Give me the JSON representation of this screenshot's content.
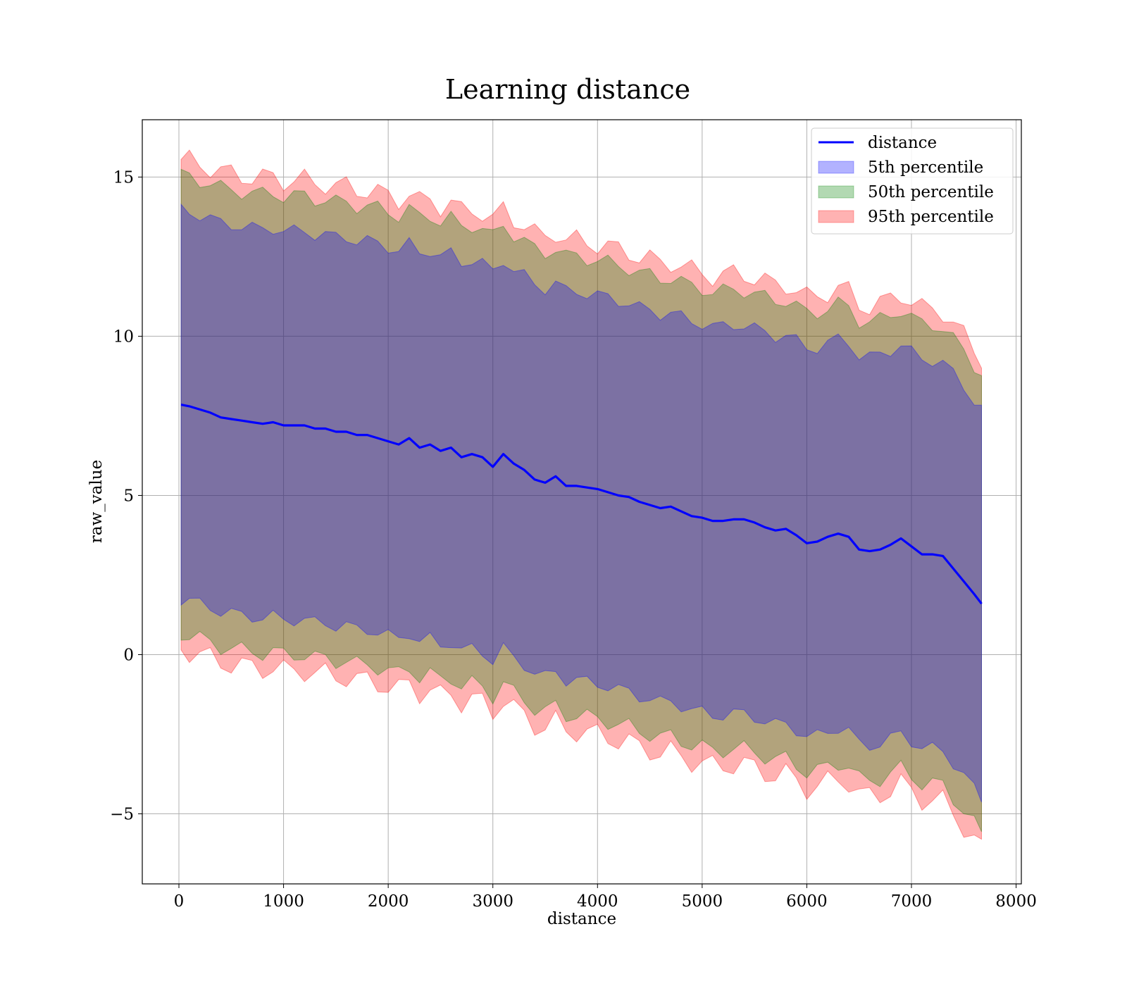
{
  "chart_data": {
    "type": "area",
    "title": "Learning distance",
    "xlabel": "distance",
    "ylabel": "raw_value",
    "xlim": [
      -350,
      8050
    ],
    "ylim": [
      -7.2,
      16.8
    ],
    "x_ticks": [
      0,
      1000,
      2000,
      3000,
      4000,
      5000,
      6000,
      7000,
      8000
    ],
    "y_ticks": [
      -5,
      0,
      5,
      10,
      15
    ],
    "x_tick_labels": [
      "0",
      "1000",
      "2000",
      "3000",
      "4000",
      "5000",
      "6000",
      "7000",
      "8000"
    ],
    "y_tick_labels": [
      "−5",
      "0",
      "5",
      "10",
      "15"
    ],
    "grid": true,
    "legend_position": "top-right",
    "x": [
      20,
      100,
      200,
      300,
      400,
      500,
      600,
      700,
      800,
      900,
      1000,
      1100,
      1200,
      1300,
      1400,
      1500,
      1600,
      1700,
      1800,
      1900,
      2000,
      2100,
      2200,
      2300,
      2400,
      2500,
      2600,
      2700,
      2800,
      2900,
      3000,
      3100,
      3200,
      3300,
      3400,
      3500,
      3600,
      3700,
      3800,
      3900,
      4000,
      4100,
      4200,
      4300,
      4400,
      4500,
      4600,
      4700,
      4800,
      4900,
      5000,
      5100,
      5200,
      5300,
      5400,
      5500,
      5600,
      5700,
      5800,
      5900,
      6000,
      6100,
      6200,
      6300,
      6400,
      6500,
      6600,
      6700,
      6800,
      6900,
      7000,
      7100,
      7200,
      7300,
      7400,
      7500,
      7600,
      7670
    ],
    "series": [
      {
        "name": "distance",
        "kind": "line",
        "color": "#0000ff",
        "values": [
          7.85,
          7.8,
          7.7,
          7.6,
          7.45,
          7.4,
          7.35,
          7.3,
          7.25,
          7.3,
          7.2,
          7.2,
          7.2,
          7.1,
          7.1,
          7.0,
          7.0,
          6.9,
          6.9,
          6.8,
          6.7,
          6.6,
          6.8,
          6.5,
          6.6,
          6.4,
          6.5,
          6.2,
          6.3,
          6.2,
          5.9,
          6.3,
          6.0,
          5.8,
          5.5,
          5.4,
          5.6,
          5.3,
          5.3,
          5.25,
          5.2,
          5.1,
          5.0,
          4.95,
          4.8,
          4.7,
          4.6,
          4.65,
          4.5,
          4.35,
          4.3,
          4.2,
          4.2,
          4.25,
          4.25,
          4.15,
          4.0,
          3.9,
          3.95,
          3.75,
          3.5,
          3.55,
          3.7,
          3.8,
          3.7,
          3.3,
          3.25,
          3.3,
          3.45,
          3.65,
          3.4,
          3.15,
          3.15,
          3.1,
          2.7,
          2.3,
          1.9,
          1.6
        ]
      },
      {
        "name": "5th percentile",
        "kind": "band",
        "color": "#0000ff",
        "offset": 6.1,
        "amplitude": 0.2
      },
      {
        "name": "50th percentile",
        "kind": "band",
        "color": "#008000",
        "offset": 7.2,
        "amplitude": 0.25
      },
      {
        "name": "95th percentile",
        "kind": "band",
        "color": "#ff0000",
        "offset": 7.7,
        "amplitude": 0.35
      }
    ]
  }
}
